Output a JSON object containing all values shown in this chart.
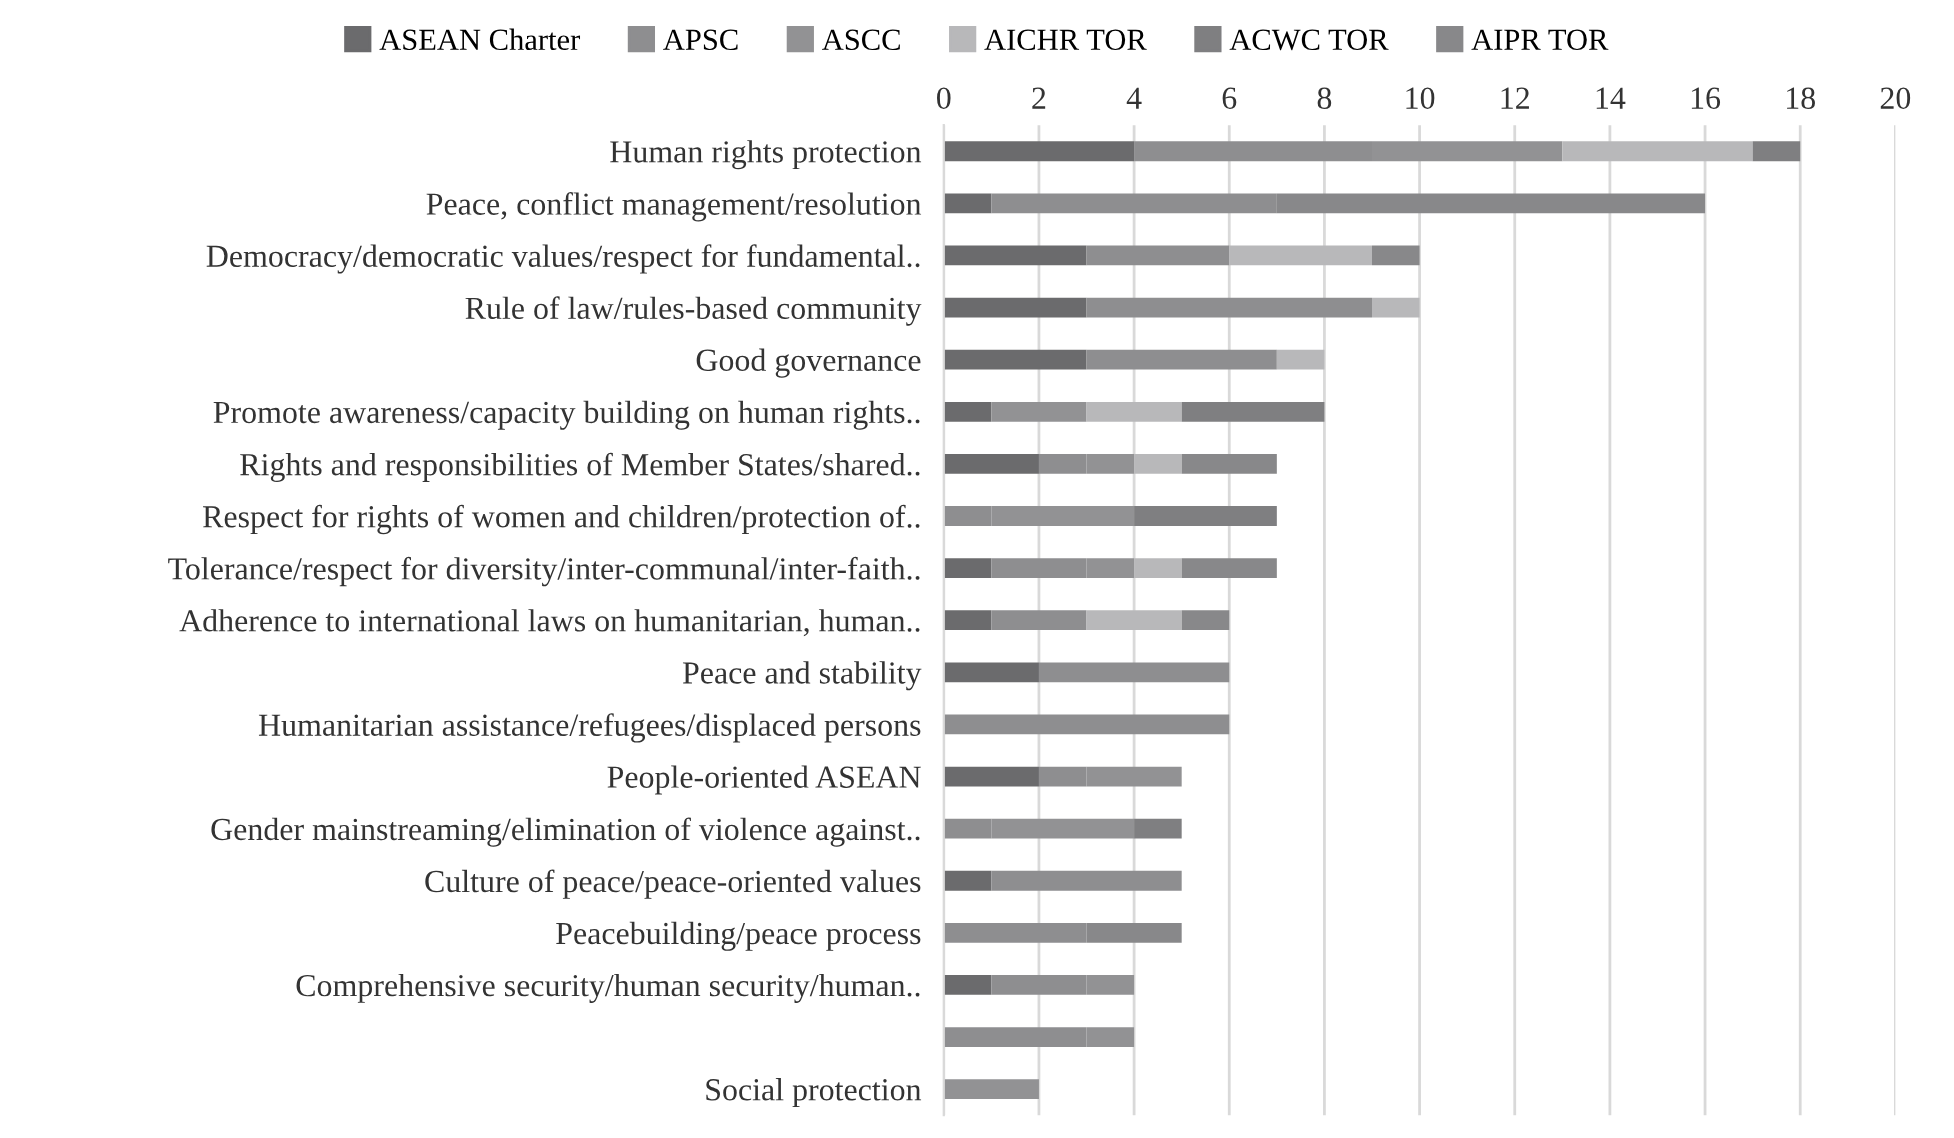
{
  "chart_data": {
    "type": "bar",
    "orientation": "horizontal",
    "stacked": true,
    "categories": [
      "Human rights protection",
      "Peace, conflict management/resolution",
      "Democracy/democratic values/respect for fundamental..",
      "Rule of law/rules-based community",
      "Good governance",
      "Promote awareness/capacity building on human rights..",
      "Rights and responsibilities of Member States/shared..",
      "Respect for rights of women and children/protection of..",
      "Tolerance/respect for diversity/inter-communal/inter-faith..",
      "Adherence to international laws on humanitarian, human..",
      "Peace and stability",
      "Humanitarian assistance/refugees/displaced persons",
      "People-oriented ASEAN",
      "Gender mainstreaming/elimination of violence against..",
      "Culture of peace/peace-oriented values",
      "Peacebuilding/peace process",
      "Comprehensive security/human security/human..",
      null,
      "Social protection"
    ],
    "series": [
      {
        "name": "ASEAN Charter",
        "color": "#6b6b6d",
        "values": [
          4,
          1,
          3,
          3,
          3,
          1,
          2,
          0,
          1,
          1,
          2,
          0,
          2,
          0,
          1,
          0,
          1,
          0,
          0
        ]
      },
      {
        "name": "APSC",
        "color": "#8e8e90",
        "values": [
          5,
          6,
          3,
          6,
          4,
          0,
          1,
          1,
          2,
          2,
          4,
          6,
          1,
          1,
          4,
          3,
          2,
          3,
          0
        ]
      },
      {
        "name": "ASCC",
        "color": "#929294",
        "values": [
          4,
          0,
          0,
          0,
          0,
          2,
          1,
          3,
          1,
          0,
          0,
          0,
          2,
          3,
          0,
          0,
          1,
          1,
          2
        ]
      },
      {
        "name": "AICHR TOR",
        "color": "#b8b8ba",
        "values": [
          4,
          0,
          3,
          1,
          1,
          2,
          1,
          0,
          1,
          2,
          0,
          0,
          0,
          0,
          0,
          0,
          0,
          0,
          0
        ]
      },
      {
        "name": "ACWC TOR",
        "color": "#7f7f81",
        "values": [
          1,
          0,
          0,
          0,
          0,
          3,
          0,
          3,
          0,
          0,
          0,
          0,
          0,
          1,
          0,
          0,
          0,
          0,
          0
        ]
      },
      {
        "name": "AIPR TOR",
        "color": "#88888a",
        "values": [
          0,
          9,
          1,
          0,
          0,
          0,
          2,
          0,
          2,
          1,
          0,
          0,
          0,
          0,
          0,
          2,
          0,
          0,
          0
        ]
      }
    ],
    "xlim": [
      0,
      20
    ],
    "xticks": [
      0,
      2,
      4,
      6,
      8,
      10,
      12,
      14,
      16,
      18,
      20
    ],
    "grid": "x",
    "legend": "top"
  }
}
